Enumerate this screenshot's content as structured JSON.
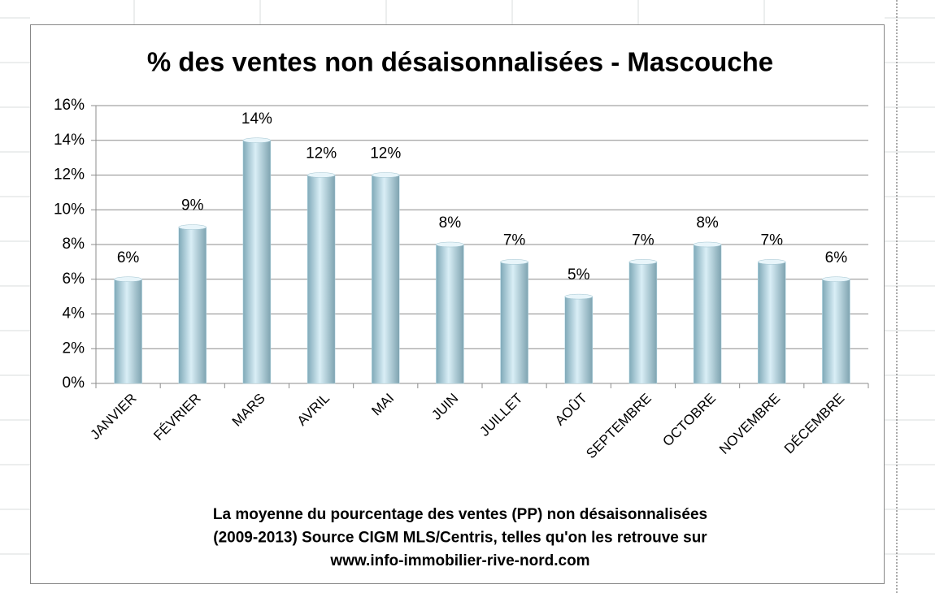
{
  "chart_data": {
    "type": "bar",
    "title": "% des ventes non désaisonnalisées - Mascouche",
    "categories": [
      "JANVIER",
      "FÉVRIER",
      "MARS",
      "AVRIL",
      "MAI",
      "JUIN",
      "JUILLET",
      "AOÛT",
      "SEPTEMBRE",
      "OCTOBRE",
      "NOVEMBRE",
      "DÉCEMBRE"
    ],
    "values": [
      6,
      9,
      14,
      12,
      12,
      8,
      7,
      5,
      7,
      8,
      7,
      6
    ],
    "value_labels": [
      "6%",
      "9%",
      "14%",
      "12%",
      "12%",
      "8%",
      "7%",
      "5%",
      "7%",
      "8%",
      "7%",
      "6%"
    ],
    "color": "#b7dbe8",
    "ylim": [
      0,
      16
    ],
    "yticks": [
      {
        "value": 0,
        "label": "0%"
      },
      {
        "value": 2,
        "label": "2%"
      },
      {
        "value": 4,
        "label": "4%"
      },
      {
        "value": 6,
        "label": "6%"
      },
      {
        "value": 8,
        "label": "8%"
      },
      {
        "value": 10,
        "label": "10%"
      },
      {
        "value": 12,
        "label": "12%"
      },
      {
        "value": 14,
        "label": "14%"
      },
      {
        "value": 16,
        "label": "16%"
      }
    ],
    "grid": true,
    "caption": [
      "La moyenne du pourcentage des ventes (PP) non désaisonnalisées",
      "(2009-2013) Source CIGM MLS/Centris, telles qu'on les retrouve sur",
      "www.info-immobilier-rive-nord.com"
    ]
  }
}
